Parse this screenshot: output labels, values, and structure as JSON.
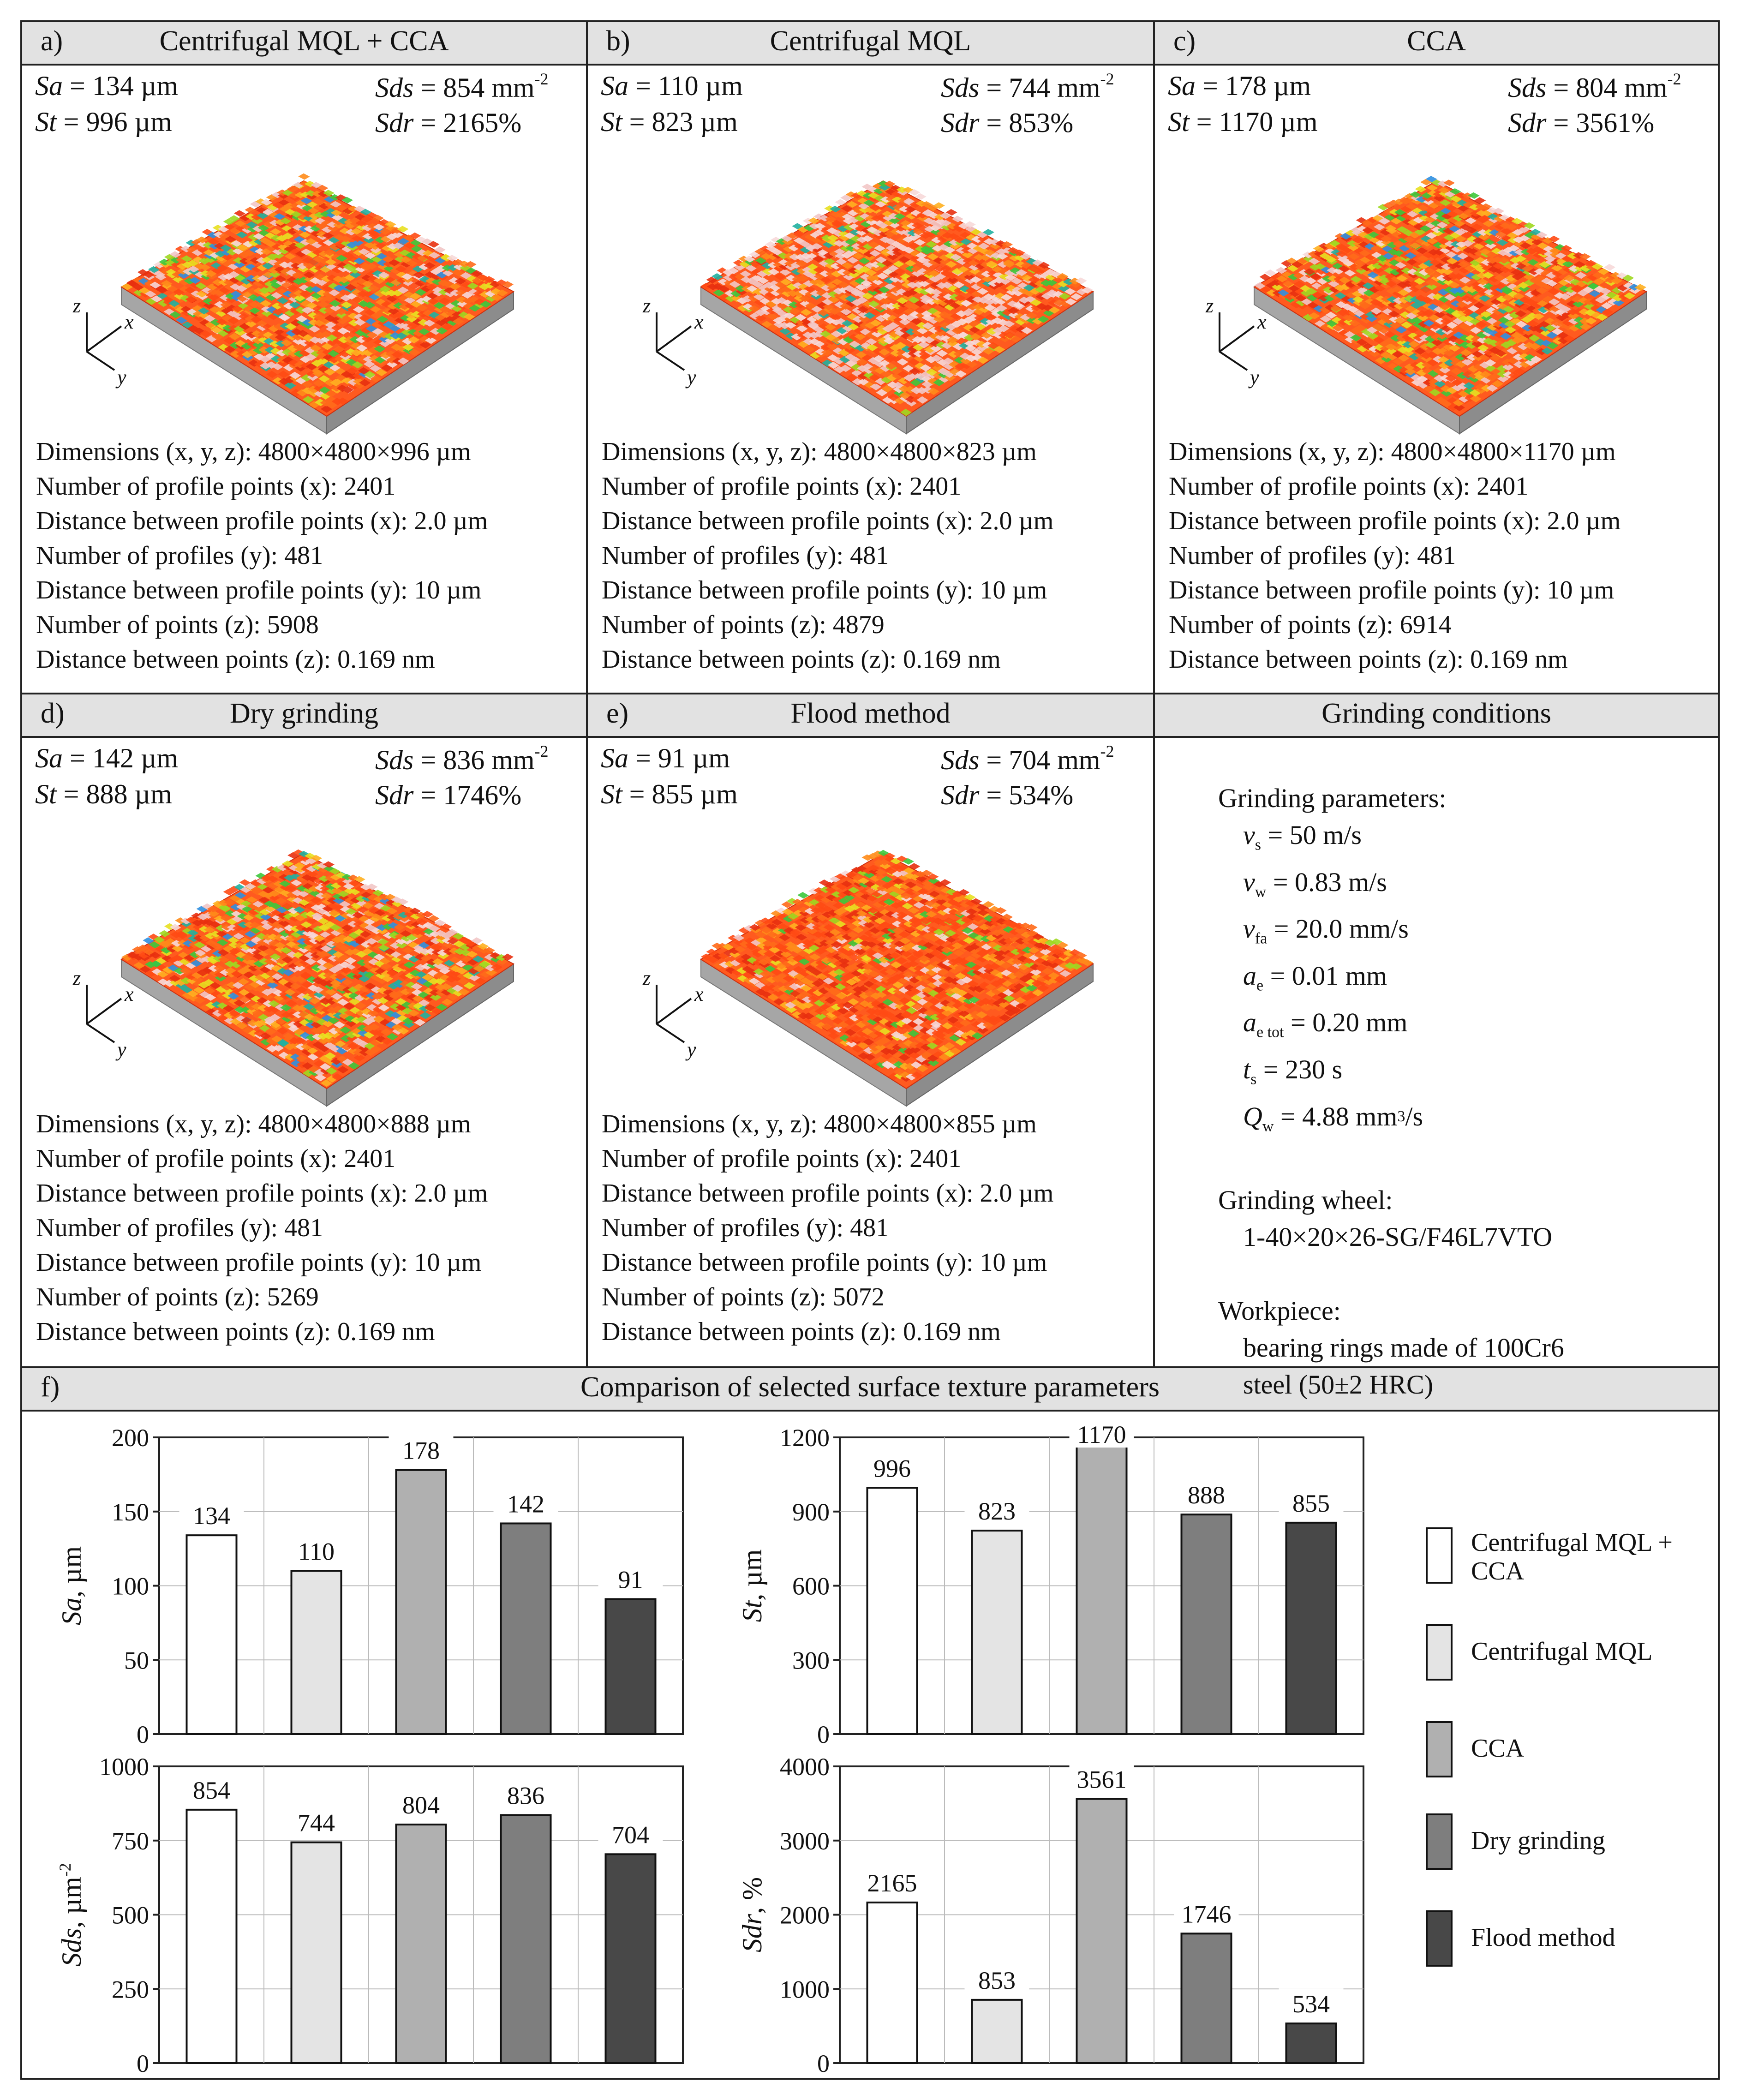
{
  "panels": [
    {
      "label": "a)",
      "title": "Centrifugal MQL + CCA",
      "Sa": "= 134 µm",
      "St": "= 996 µm",
      "Sds": "= 854 mm",
      "Sdr": "= 2165%",
      "dims": "Dimensions (x, y, z): 4800×4800×996 µm",
      "n_points_x": "Number of profile points (x): 2401",
      "dist_x": "Distance between profile points (x): 2.0 µm",
      "n_profiles_y": "Number of profiles (y): 481",
      "dist_y": "Distance between profile points (y): 10 µm",
      "n_points_z": "Number of points (z): 5908",
      "dist_z": "Distance between points (z): 0.169 nm"
    },
    {
      "label": "b)",
      "title": "Centrifugal MQL",
      "Sa": "= 110 µm",
      "St": "= 823 µm",
      "Sds": "= 744 mm",
      "Sdr": "= 853%",
      "dims": "Dimensions (x, y, z): 4800×4800×823 µm",
      "n_points_x": "Number of profile points (x): 2401",
      "dist_x": "Distance between profile points (x): 2.0 µm",
      "n_profiles_y": "Number of profiles (y): 481",
      "dist_y": "Distance between profile points (y): 10 µm",
      "n_points_z": "Number of points (z): 4879",
      "dist_z": "Distance between points (z): 0.169 nm"
    },
    {
      "label": "c)",
      "title": "CCA",
      "Sa": "= 178 µm",
      "St": "= 1170 µm",
      "Sds": "= 804 mm",
      "Sdr": "= 3561%",
      "dims": "Dimensions (x, y, z): 4800×4800×1170 µm",
      "n_points_x": "Number of profile points (x): 2401",
      "dist_x": "Distance between profile points (x): 2.0 µm",
      "n_profiles_y": "Number of profiles (y): 481",
      "dist_y": "Distance between profile points (y): 10 µm",
      "n_points_z": "Number of points (z): 6914",
      "dist_z": "Distance between points (z): 0.169 nm"
    },
    {
      "label": "d)",
      "title": "Dry grinding",
      "Sa": "= 142 µm",
      "St": "= 888 µm",
      "Sds": "= 836 mm",
      "Sdr": "= 1746%",
      "dims": "Dimensions (x, y, z): 4800×4800×888 µm",
      "n_points_x": "Number of profile points (x): 2401",
      "dist_x": "Distance between profile points (x): 2.0 µm",
      "n_profiles_y": "Number of profiles (y): 481",
      "dist_y": "Distance between profile points (y): 10 µm",
      "n_points_z": "Number of points (z): 5269",
      "dist_z": "Distance between points (z): 0.169 nm"
    },
    {
      "label": "e)",
      "title": "Flood method",
      "Sa": "= 91 µm",
      "St": "= 855 µm",
      "Sds": "= 704 mm",
      "Sdr": "= 534%",
      "dims": "Dimensions (x, y, z): 4800×4800×855 µm",
      "n_points_x": "Number of profile points (x): 2401",
      "dist_x": "Distance between profile points (x): 2.0 µm",
      "n_profiles_y": "Number of profiles (y): 481",
      "dist_y": "Distance between profile points (y): 10 µm",
      "n_points_z": "Number of points (z): 5072",
      "dist_z": "Distance between points (z): 0.169 nm"
    }
  ],
  "param_names": {
    "Sa": "Sa",
    "St": "St",
    "Sds": "Sds",
    "Sdr": "Sdr",
    "sup": "-2"
  },
  "axis_letters": {
    "x": "x",
    "y": "y",
    "z": "z"
  },
  "conditions": {
    "title": "Grinding conditions",
    "params_heading": "Grinding parameters:",
    "vs": "= 50 m/s",
    "vw": "= 0.83 m/s",
    "vfa": "= 20.0 mm/s",
    "ae": "= 0.01 mm",
    "aetot": "= 0.20 mm",
    "ts": "= 230 s",
    "Qw": "= 4.88 mm",
    "sym_v": "v",
    "sym_a": "a",
    "sym_t": "t",
    "sym_Q": "Q",
    "sub_s": "s",
    "sub_w": "w",
    "sub_fa": "fa",
    "sub_e": "e",
    "sub_etot": "e tot",
    "Qw_tail": "/s",
    "Qw_sup": "3",
    "wheel_heading": "Grinding wheel:",
    "wheel": "1-40×20×26-SG/F46L7VTO",
    "workpiece_heading": "Workpiece:",
    "workpiece_1": "bearing rings made of 100Cr6",
    "workpiece_2": "steel (50±2 HRC)"
  },
  "section_f": {
    "label": "f)",
    "title": "Comparison of selected surface texture parameters"
  },
  "legend": {
    "items": [
      "Centrifugal MQL + CCA",
      "Centrifugal MQL",
      "CCA",
      "Dry grinding",
      "Flood method"
    ]
  },
  "colors": {
    "series": [
      "#ffffff",
      "#e4e4e4",
      "#b0b0b0",
      "#7e7e7e",
      "#484848"
    ],
    "header": "#e2e2e2",
    "border": "#222222"
  },
  "chart_data": [
    {
      "type": "bar",
      "ylabel_italic": "Sa",
      "ylabel_rest": ", µm",
      "sup": "",
      "ylim": [
        0,
        200
      ],
      "yticks": [
        0,
        50,
        100,
        150,
        200
      ],
      "categories": [
        "Centrifugal MQL + CCA",
        "Centrifugal MQL",
        "CCA",
        "Dry grinding",
        "Flood method"
      ],
      "values": [
        134,
        110,
        178,
        142,
        91
      ]
    },
    {
      "type": "bar",
      "ylabel_italic": "St",
      "ylabel_rest": ", µm",
      "sup": "",
      "ylim": [
        0,
        1200
      ],
      "yticks": [
        0,
        300,
        600,
        900,
        1200
      ],
      "categories": [
        "Centrifugal MQL + CCA",
        "Centrifugal MQL",
        "CCA",
        "Dry grinding",
        "Flood method"
      ],
      "values": [
        996,
        823,
        1170,
        888,
        855
      ]
    },
    {
      "type": "bar",
      "ylabel_italic": "Sds",
      "ylabel_rest": ", µm",
      "sup": "-2",
      "ylim": [
        0,
        1000
      ],
      "yticks": [
        0,
        250,
        500,
        750,
        1000
      ],
      "categories": [
        "Centrifugal MQL + CCA",
        "Centrifugal MQL",
        "CCA",
        "Dry grinding",
        "Flood method"
      ],
      "values": [
        854,
        744,
        804,
        836,
        704
      ]
    },
    {
      "type": "bar",
      "ylabel_italic": "Sdr",
      "ylabel_rest": ", %",
      "sup": "",
      "ylim": [
        0,
        4000
      ],
      "yticks": [
        0,
        1000,
        2000,
        3000,
        4000
      ],
      "categories": [
        "Centrifugal MQL + CCA",
        "Centrifugal MQL",
        "CCA",
        "Dry grinding",
        "Flood method"
      ],
      "values": [
        2165,
        853,
        3561,
        1746,
        534
      ]
    }
  ]
}
